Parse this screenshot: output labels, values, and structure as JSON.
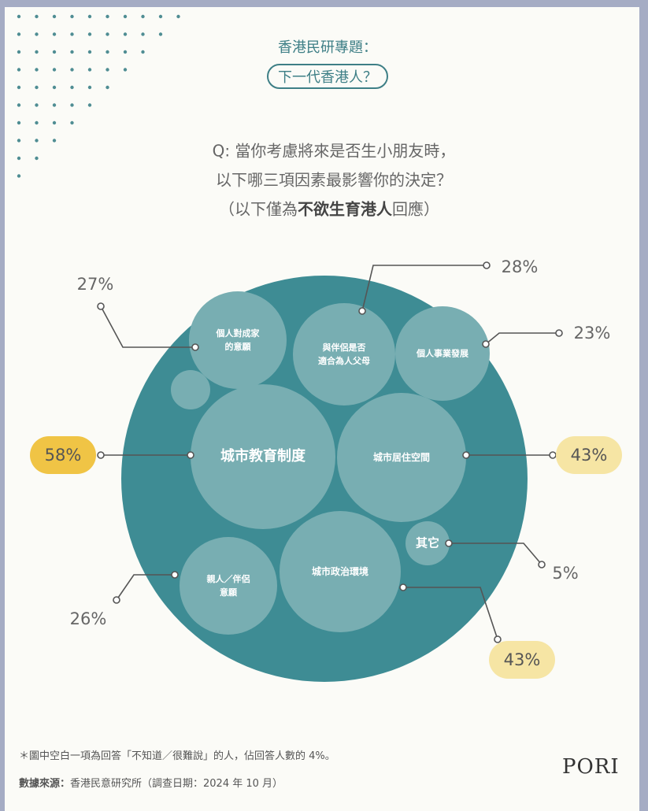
{
  "header": {
    "kicker": "香港民研專題：",
    "title": "下一代香港人？"
  },
  "question": {
    "lines": [
      "Q: 當你考慮將來是否生小朋友時，",
      "以下哪三項因素最影響你的決定？"
    ],
    "scope": [
      "（以下僅為",
      "不欲生育港人",
      "回應）"
    ]
  },
  "chart_data": {
    "type": "packed_bubble",
    "outer_color": "#3e8c94",
    "bubble_color": "#78aeb2",
    "categories": [
      "個人對成家\n的意願",
      "與伴侶是否\n適合為人父母",
      "個人事業發展",
      null,
      "城市教育制度",
      "城市居住空間",
      "其它",
      "親人／伴侶\n意願",
      "城市政治環境"
    ],
    "values": [
      27,
      28,
      23,
      4,
      58,
      43,
      5,
      26,
      43
    ],
    "value_labels": [
      "27%",
      "28%",
      "23%",
      null,
      "58%",
      "43%",
      "5%",
      "26%",
      "43%"
    ],
    "label_fill": [
      null,
      null,
      null,
      null,
      "#f0c445",
      "#f6e5a4",
      null,
      null,
      "#f6e5a4"
    ]
  },
  "footer": {
    "note": "＊圖中空白一項為回答「不知道／很難說」的人，佔回答人數的 4%。",
    "source_label": "數據來源：",
    "source": "香港民意研究所（調查日期：2024 年 10 月）",
    "logo": "PORI"
  }
}
